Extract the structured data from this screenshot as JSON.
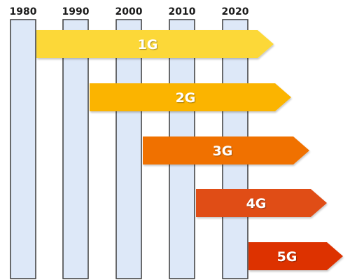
{
  "timeline": {
    "years": [
      "1980",
      "1990",
      "2000",
      "2010",
      "2020"
    ]
  },
  "generations": [
    {
      "label": "1G",
      "start": "1980",
      "color": "#fcd837"
    },
    {
      "label": "2G",
      "start": "1990",
      "color": "#fbb400"
    },
    {
      "label": "3G",
      "start": "2000",
      "color": "#f07100"
    },
    {
      "label": "4G",
      "start": "2010",
      "color": "#e04e16"
    },
    {
      "label": "5G",
      "start": "2020",
      "color": "#dd3300"
    }
  ],
  "colors": {
    "column_fill": "#dde8f8",
    "column_stroke": "#3c3c3c",
    "year_text": "#1a1a1a",
    "arrow_text": "#ffffff"
  }
}
